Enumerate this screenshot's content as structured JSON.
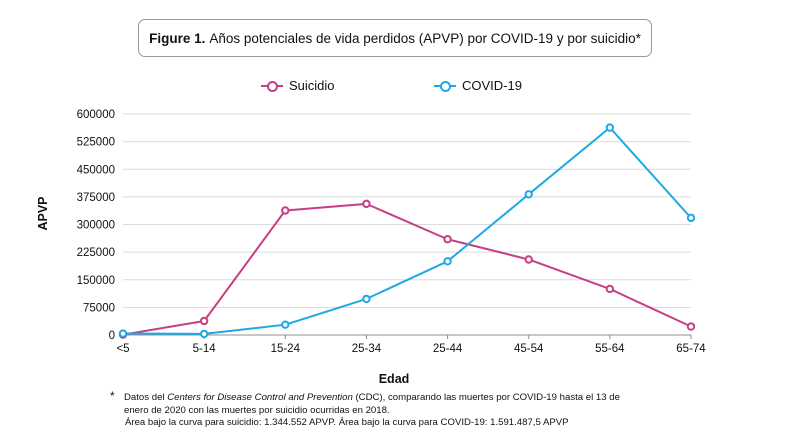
{
  "title": {
    "bold": "Figure 1.",
    "text": "Años potenciales de vida perdidos (APVP) por COVID-19 y por suicidio*"
  },
  "legend": [
    {
      "label": "Suicidio",
      "color": "#c63f84"
    },
    {
      "label": "COVID-19",
      "color": "#1ea8e6"
    }
  ],
  "chart_data": {
    "type": "line",
    "title": "Figure 1. Años potenciales de vida perdidos (APVP) por COVID-19 y por suicidio*",
    "xlabel": "Edad",
    "ylabel": "APVP",
    "categories": [
      "<5",
      "5-14",
      "15-24",
      "25-34",
      "25-44",
      "45-54",
      "55-64",
      "65-74"
    ],
    "ylim": [
      0,
      600000
    ],
    "yticks": [
      0,
      75000,
      150000,
      225000,
      300000,
      375000,
      450000,
      525000,
      600000
    ],
    "ytick_labels": [
      "0",
      "75000",
      "150000",
      "225000",
      "300000",
      "375000",
      "450000",
      "525000",
      "600000"
    ],
    "grid": true,
    "legend_position": "top",
    "series": [
      {
        "name": "Suicidio",
        "color": "#c63f84",
        "values": [
          1000,
          38000,
          338000,
          356000,
          260000,
          205000,
          125000,
          23000
        ]
      },
      {
        "name": "COVID-19",
        "color": "#1ea8e6",
        "values": [
          4000,
          3000,
          28000,
          98000,
          200000,
          382000,
          563000,
          318000
        ]
      }
    ]
  },
  "footnote": {
    "star": "*",
    "line1_pre": "Datos del ",
    "line1_italic": "Centers for Disease Control and Prevention",
    "line1_post": " (CDC), comparando las muertes por COVID-19 hasta el 13 de",
    "line2": "enero de 2020 con las muertes por suicidio ocurridas en 2018.",
    "line3": "Área bajo la curva para suicidio: 1.344.552 APVP. Área bajo la curva para COVID-19: 1.591.487,5 APVP"
  }
}
